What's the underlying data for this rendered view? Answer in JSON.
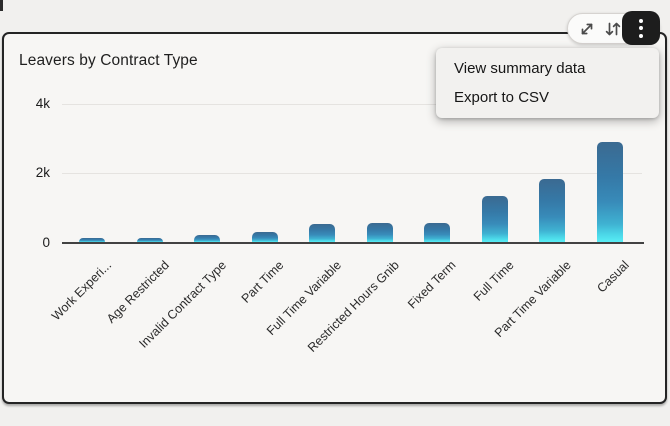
{
  "card": {
    "title": "Leavers by Contract Type"
  },
  "toolbar": {
    "expand_icon": "expand-icon",
    "sort_icon": "sort-arrows-icon",
    "more_icon": "kebab-menu-icon"
  },
  "menu": {
    "items": [
      {
        "label": "View summary data"
      },
      {
        "label": "Export to CSV"
      }
    ]
  },
  "chart_data": {
    "type": "bar",
    "title": "Leavers by Contract Type",
    "categories": [
      "Work Experi...",
      "Age Restricted",
      "Invalid Contract Type",
      "Part Time",
      "Full Time Variable",
      "Restricted Hours Gnib",
      "Fixed Term",
      "Full Time",
      "Part Time Variable",
      "Casual"
    ],
    "values": [
      110,
      110,
      190,
      280,
      530,
      550,
      540,
      1310,
      1820,
      2870
    ],
    "xlabel": "",
    "ylabel": "",
    "y_ticks_top_to_bottom": [
      "4k",
      "2k",
      "0"
    ],
    "ylim": [
      0,
      4300
    ],
    "grid": true,
    "legend": "none",
    "x_label_rotation_deg": -45,
    "bar_gradient_top_to_bottom": [
      "#3b6a91",
      "#3579a7",
      "#388bb9",
      "#3fb2d2",
      "#4cd9e9",
      "#58eef5"
    ]
  }
}
